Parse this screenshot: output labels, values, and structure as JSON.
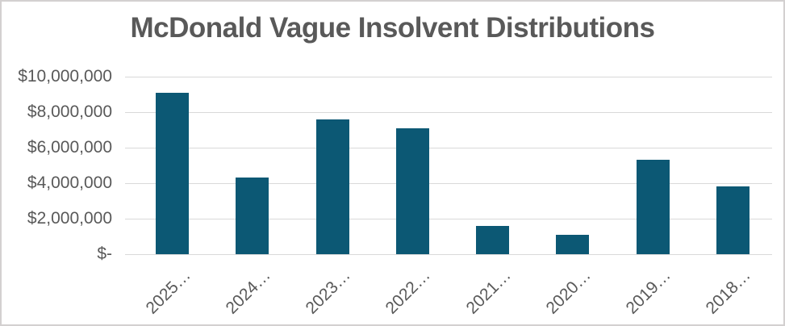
{
  "title": {
    "text": "McDonald Vague Insolvent Distributions"
  },
  "chart_data": {
    "type": "bar",
    "title": "McDonald Vague Insolvent Distributions",
    "categories": [
      "2025…",
      "2024…",
      "2023…",
      "2022…",
      "2021…",
      "2020…",
      "2019…",
      "2018…"
    ],
    "values": [
      9100000,
      4300000,
      7600000,
      7100000,
      1600000,
      1100000,
      5300000,
      3800000
    ],
    "xlabel": "",
    "ylabel": "",
    "ylim": [
      0,
      10000000
    ],
    "y_tick_labels": [
      "$10,000,000",
      "$8,000,000",
      "$6,000,000",
      "$4,000,000",
      "$2,000,000",
      "$-"
    ],
    "x_label_rotation_deg": -45,
    "grid": "horizontal",
    "legend": "none",
    "colors": {
      "bar": "#0c5874",
      "gridline": "#d9d9d9",
      "text": "#595959",
      "frame_border": "#d3d0d0",
      "background": "#ffffff"
    }
  }
}
